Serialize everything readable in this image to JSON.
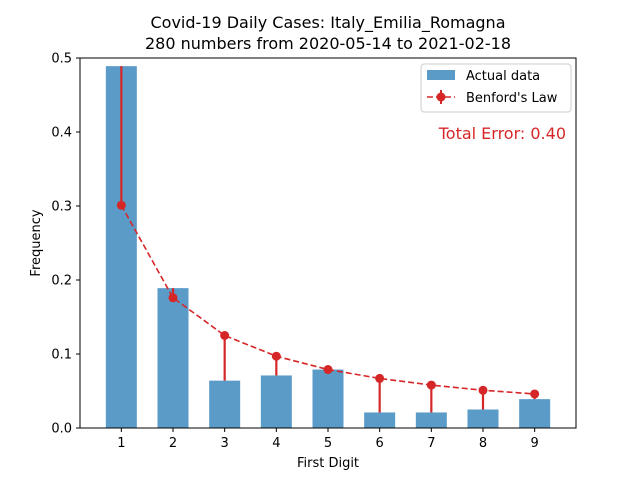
{
  "chart_data": {
    "type": "bar",
    "title": "Covid-19 Daily Cases: Italy_Emilia_Romagna",
    "subtitle": "280 numbers from 2020-05-14 to 2021-02-18",
    "xlabel": "First Digit",
    "ylabel": "Frequency",
    "categories": [
      "1",
      "2",
      "3",
      "4",
      "5",
      "6",
      "7",
      "8",
      "9"
    ],
    "ylim": [
      0,
      0.5
    ],
    "yticks": [
      "0.0",
      "0.1",
      "0.2",
      "0.3",
      "0.4",
      "0.5"
    ],
    "grid": false,
    "legend_position": "top-right",
    "series": [
      {
        "name": "Actual data",
        "kind": "bar",
        "color": "#5b9bc8",
        "values": [
          0.489,
          0.189,
          0.064,
          0.071,
          0.079,
          0.021,
          0.021,
          0.025,
          0.039
        ]
      },
      {
        "name": "Benford's Law",
        "kind": "line-errorbar",
        "color": "#d62728",
        "values": [
          0.301,
          0.176,
          0.125,
          0.097,
          0.079,
          0.067,
          0.058,
          0.051,
          0.046
        ]
      }
    ],
    "annotation": {
      "text": "Total Error: 0.40",
      "color": "#d62728"
    }
  }
}
